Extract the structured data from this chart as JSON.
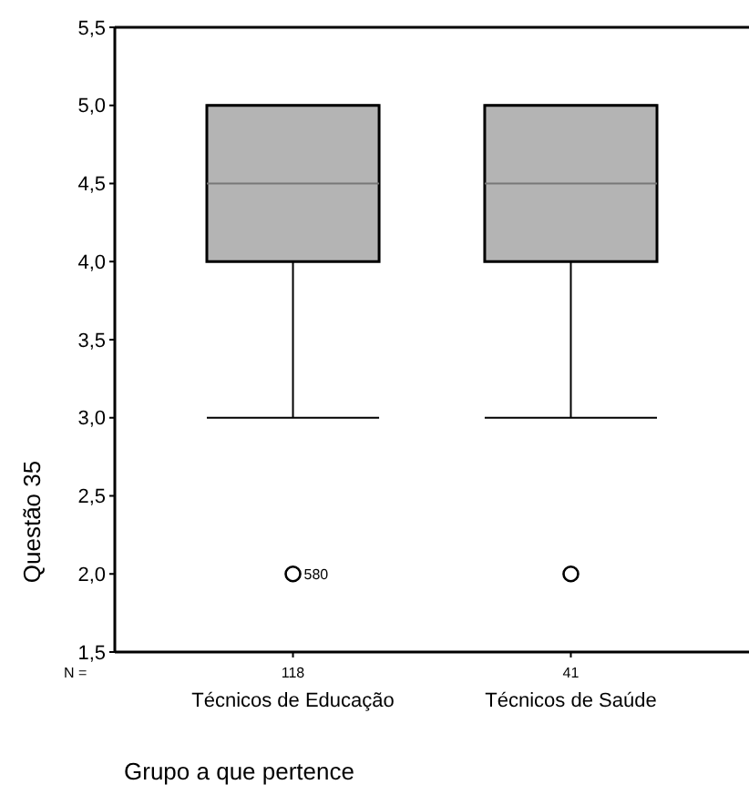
{
  "chart_data": {
    "type": "box",
    "xlabel": "Grupo a que pertence",
    "ylabel": "Questão 35",
    "categories": [
      "Técnicos de Educação",
      "Técnicos de Saúde"
    ],
    "color": "#b4b4b4",
    "boxes": [
      {
        "low": 3,
        "q1": 4,
        "median": 4.5,
        "q3": 5,
        "high": 5,
        "outliers": [
          2
        ]
      },
      {
        "low": 3,
        "q1": 4,
        "median": 4.5,
        "q3": 5,
        "high": 5,
        "outliers": [
          2
        ]
      }
    ],
    "ylim": [
      1.5,
      5.5
    ],
    "yticks": [
      {
        "value": 1.5,
        "label": "1,5"
      },
      {
        "value": 2,
        "label": "2,0"
      },
      {
        "value": 2.5,
        "label": "2,5"
      },
      {
        "value": 3,
        "label": "3,0"
      },
      {
        "value": 3.5,
        "label": "3,5"
      },
      {
        "value": 4,
        "label": "4,0"
      },
      {
        "value": 4.5,
        "label": "4,5"
      },
      {
        "value": 5,
        "label": "5,0"
      },
      {
        "value": 5.5,
        "label": "5,5"
      }
    ],
    "annotations": [
      "N =",
      "118",
      "41",
      "580"
    ],
    "grid": false
  }
}
